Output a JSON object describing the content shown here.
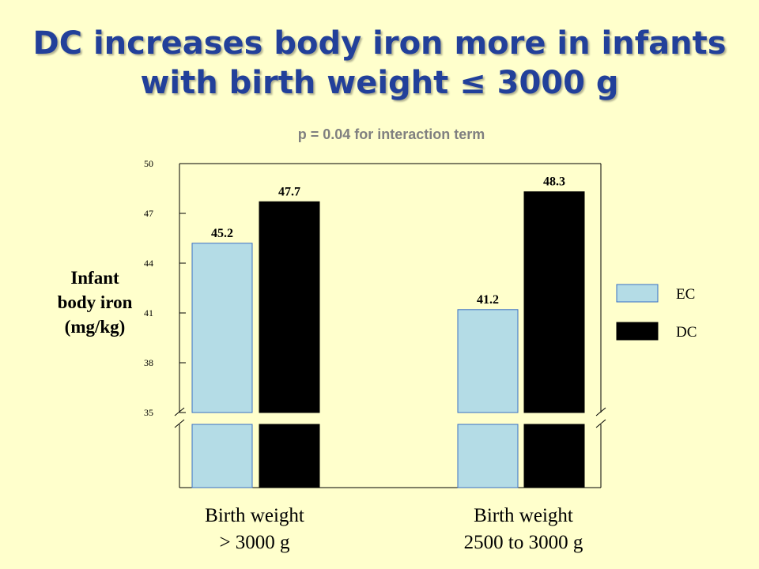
{
  "chart_data": {
    "type": "bar",
    "title": "DC increases body iron more in infants with birth weight ≤ 3000 g",
    "subtitle": "p = 0.04 for interaction term",
    "y_label": "Infant\nbody iron\n(mg/kg)",
    "categories": [
      "Birth weight\n> 3000 g",
      "Birth weight\n2500 to 3000 g"
    ],
    "series": [
      {
        "name": "EC",
        "color": "#b4dce6",
        "values": [
          45.2,
          41.2
        ]
      },
      {
        "name": "DC",
        "color": "#000000",
        "values": [
          47.7,
          48.3
        ]
      }
    ],
    "ylim": [
      35,
      50
    ],
    "yticks": [
      35,
      38,
      41,
      44,
      47,
      50
    ],
    "axis_break": true,
    "legend": "right"
  }
}
